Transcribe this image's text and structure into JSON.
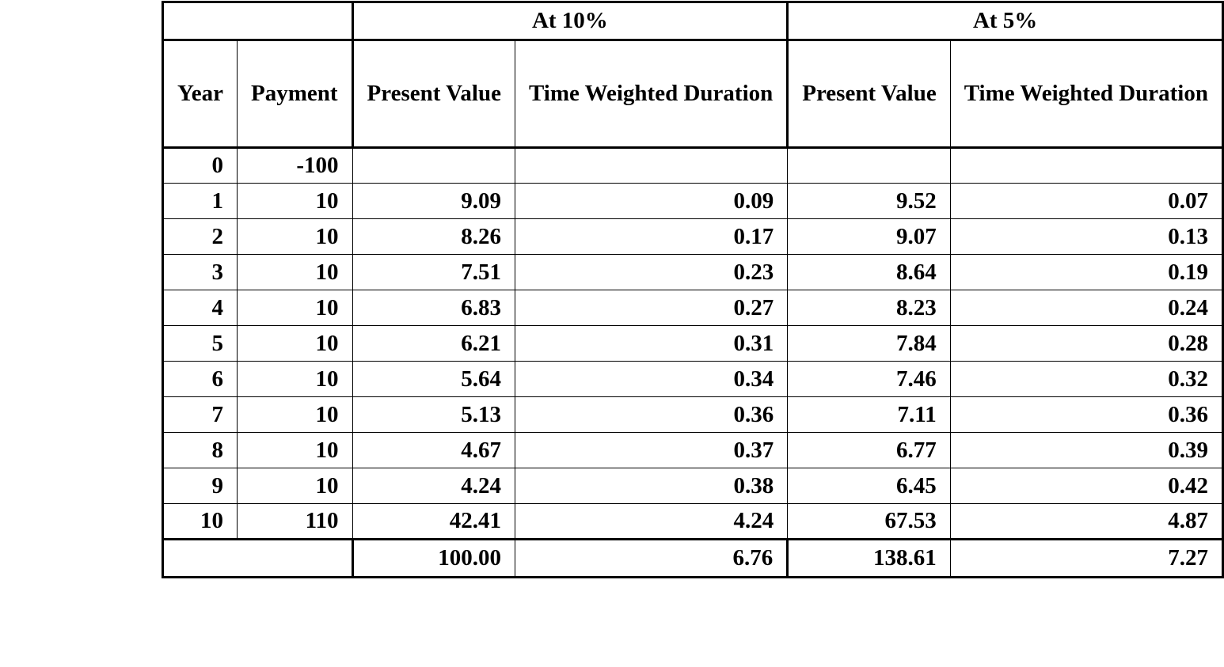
{
  "group_headers": {
    "blank": "",
    "at10": "At 10%",
    "at5": "At 5%"
  },
  "column_headers": {
    "year": "Year",
    "payment": "Payment",
    "pv10": "Present Value",
    "twd10": "Time Weighted Duration",
    "pv5": "Present Value",
    "twd5": "Time Weighted Duration"
  },
  "rows": [
    {
      "year": "0",
      "payment": "-100",
      "pv10": "",
      "twd10": "",
      "pv5": "",
      "twd5": ""
    },
    {
      "year": "1",
      "payment": "10",
      "pv10": "9.09",
      "twd10": "0.09",
      "pv5": "9.52",
      "twd5": "0.07"
    },
    {
      "year": "2",
      "payment": "10",
      "pv10": "8.26",
      "twd10": "0.17",
      "pv5": "9.07",
      "twd5": "0.13"
    },
    {
      "year": "3",
      "payment": "10",
      "pv10": "7.51",
      "twd10": "0.23",
      "pv5": "8.64",
      "twd5": "0.19"
    },
    {
      "year": "4",
      "payment": "10",
      "pv10": "6.83",
      "twd10": "0.27",
      "pv5": "8.23",
      "twd5": "0.24"
    },
    {
      "year": "5",
      "payment": "10",
      "pv10": "6.21",
      "twd10": "0.31",
      "pv5": "7.84",
      "twd5": "0.28"
    },
    {
      "year": "6",
      "payment": "10",
      "pv10": "5.64",
      "twd10": "0.34",
      "pv5": "7.46",
      "twd5": "0.32"
    },
    {
      "year": "7",
      "payment": "10",
      "pv10": "5.13",
      "twd10": "0.36",
      "pv5": "7.11",
      "twd5": "0.36"
    },
    {
      "year": "8",
      "payment": "10",
      "pv10": "4.67",
      "twd10": "0.37",
      "pv5": "6.77",
      "twd5": "0.39"
    },
    {
      "year": "9",
      "payment": "10",
      "pv10": "4.24",
      "twd10": "0.38",
      "pv5": "6.45",
      "twd5": "0.42"
    },
    {
      "year": "10",
      "payment": "110",
      "pv10": "42.41",
      "twd10": "4.24",
      "pv5": "67.53",
      "twd5": "4.87"
    }
  ],
  "totals": {
    "pv10": "100.00",
    "twd10": "6.76",
    "pv5": "138.61",
    "twd5": "7.27"
  }
}
